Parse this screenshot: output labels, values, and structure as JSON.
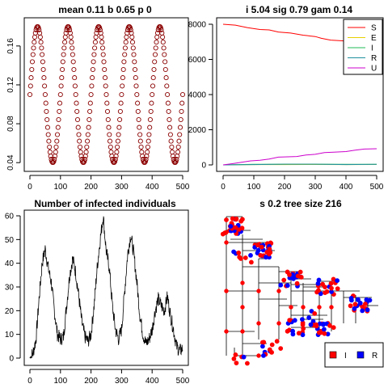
{
  "colors": {
    "marker": "#8B0000",
    "S": "#ff0000",
    "E": "#e8d000",
    "I": "#22bb55",
    "R": "#2090a0",
    "U": "#cc00cc",
    "tree_I": "#ff0000",
    "tree_R": "#0000ff",
    "axis": "#000000"
  },
  "chart_data": [
    {
      "id": "top-left",
      "type": "scatter",
      "title": "mean 0.11 b 0.65 p 0",
      "x_ticks": [
        "0",
        "100",
        "200",
        "300",
        "400",
        "500"
      ],
      "y_ticks": [
        "0.04",
        "0.08",
        "0.12",
        "0.16"
      ],
      "xlim": [
        0,
        500
      ],
      "ylim": [
        0.036,
        0.184
      ],
      "series_formula": {
        "mean": 0.11,
        "amplitude": 0.07,
        "period": 100,
        "phase_peak_at": 25,
        "n_points": 501
      },
      "marker": "open-circle"
    },
    {
      "id": "top-right",
      "type": "line",
      "title": "i 5.04 sig 0.79 gam 0.14",
      "x_ticks": [
        "0",
        "100",
        "200",
        "300",
        "400",
        "500"
      ],
      "y_ticks": [
        "0",
        "2000",
        "4000",
        "6000",
        "8000"
      ],
      "xlim": [
        0,
        500
      ],
      "ylim": [
        -200,
        8200
      ],
      "legend": [
        "S",
        "E",
        "I",
        "R",
        "U"
      ],
      "legend_position": "top-right",
      "series": [
        {
          "name": "S",
          "x": [
            0,
            40,
            80,
            120,
            150,
            180,
            220,
            260,
            300,
            320,
            350,
            400,
            450,
            500
          ],
          "values": [
            8000,
            7950,
            7800,
            7700,
            7680,
            7560,
            7500,
            7380,
            7300,
            7200,
            7100,
            7050,
            6980,
            6950
          ]
        },
        {
          "name": "E",
          "x": [
            0,
            100,
            200,
            300,
            400,
            500
          ],
          "values": [
            0,
            20,
            20,
            25,
            20,
            25
          ]
        },
        {
          "name": "I",
          "x": [
            0,
            100,
            200,
            300,
            400,
            500
          ],
          "values": [
            0,
            30,
            40,
            40,
            30,
            30
          ]
        },
        {
          "name": "R",
          "x": [
            0,
            100,
            200,
            300,
            400,
            500
          ],
          "values": [
            0,
            20,
            40,
            40,
            20,
            30
          ]
        },
        {
          "name": "U",
          "x": [
            0,
            30,
            60,
            90,
            120,
            150,
            180,
            210,
            240,
            270,
            300,
            330,
            360,
            400,
            430,
            460,
            500
          ],
          "values": [
            0,
            70,
            150,
            230,
            260,
            330,
            440,
            460,
            480,
            560,
            600,
            700,
            720,
            760,
            840,
            900,
            920
          ]
        }
      ]
    },
    {
      "id": "bottom-left",
      "type": "line",
      "title": "Number of infected individuals",
      "x_ticks": [
        "0",
        "100",
        "200",
        "300",
        "400",
        "500"
      ],
      "y_ticks": [
        "0",
        "10",
        "20",
        "30",
        "40",
        "50",
        "60"
      ],
      "xlim": [
        0,
        500
      ],
      "ylim": [
        -1,
        62
      ],
      "x": [
        0,
        5,
        10,
        20,
        30,
        40,
        50,
        60,
        70,
        80,
        90,
        100,
        110,
        120,
        130,
        140,
        150,
        160,
        170,
        180,
        190,
        200,
        210,
        220,
        230,
        240,
        245,
        250,
        260,
        270,
        280,
        290,
        300,
        310,
        320,
        330,
        340,
        350,
        360,
        370,
        380,
        390,
        400,
        410,
        420,
        430,
        440,
        450,
        460,
        470,
        480,
        490,
        500
      ],
      "values": [
        0,
        1,
        2,
        8,
        25,
        40,
        46,
        38,
        32,
        20,
        10,
        8,
        9,
        22,
        35,
        42,
        36,
        26,
        15,
        9,
        7,
        10,
        22,
        38,
        50,
        60,
        52,
        45,
        38,
        22,
        12,
        8,
        12,
        28,
        44,
        52,
        44,
        32,
        18,
        10,
        6,
        8,
        12,
        20,
        25,
        22,
        20,
        26,
        18,
        12,
        5,
        3,
        4
      ]
    },
    {
      "id": "bottom-right",
      "type": "tree",
      "title": "s 0.2 tree size 216",
      "legend": [
        "I",
        "R"
      ],
      "legend_position": "bottom-right"
    }
  ]
}
